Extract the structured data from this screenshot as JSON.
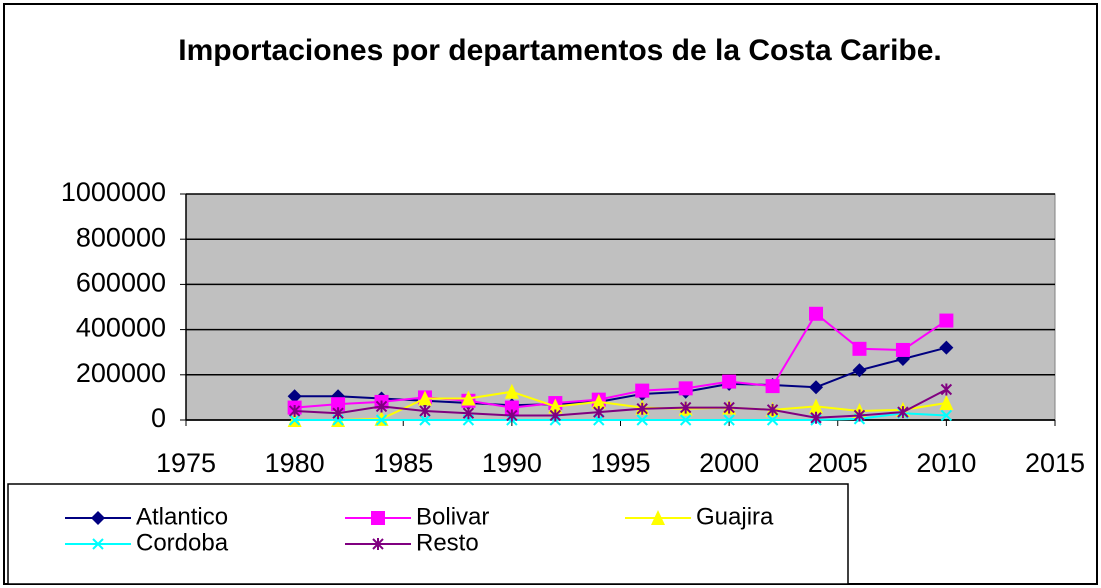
{
  "chart_data": {
    "type": "line",
    "title": "Importaciones por departamentos de la Costa Caribe.",
    "x": [
      1980,
      1982,
      1984,
      1986,
      1988,
      1990,
      1992,
      1994,
      1996,
      1998,
      2000,
      2002,
      2004,
      2006,
      2008,
      2010
    ],
    "xlim": [
      1975,
      2015
    ],
    "xticks": [
      1975,
      1980,
      1985,
      1990,
      1995,
      2000,
      2005,
      2010,
      2015
    ],
    "ylim": [
      0,
      1000000
    ],
    "yticks": [
      0,
      200000,
      400000,
      600000,
      800000,
      1000000
    ],
    "grid": true,
    "series": [
      {
        "name": "Atlantico",
        "color": "#000080",
        "marker": "diamond",
        "values": [
          105000,
          105000,
          95000,
          85000,
          75000,
          65000,
          70000,
          80000,
          115000,
          125000,
          160000,
          155000,
          145000,
          220000,
          270000,
          320000
        ]
      },
      {
        "name": "Bolivar",
        "color": "#ff00ff",
        "marker": "square",
        "values": [
          55000,
          70000,
          80000,
          100000,
          85000,
          55000,
          75000,
          90000,
          130000,
          140000,
          170000,
          150000,
          470000,
          315000,
          310000,
          440000
        ]
      },
      {
        "name": "Guajira",
        "color": "#ffff00",
        "marker": "triangle",
        "values": [
          0,
          0,
          5000,
          95000,
          95000,
          125000,
          60000,
          80000,
          55000,
          50000,
          55000,
          45000,
          60000,
          40000,
          45000,
          75000
        ]
      },
      {
        "name": "Cordoba",
        "color": "#00ffff",
        "marker": "x",
        "values": [
          0,
          0,
          0,
          0,
          0,
          0,
          0,
          0,
          0,
          0,
          0,
          0,
          0,
          5000,
          30000,
          20000
        ]
      },
      {
        "name": "Resto",
        "color": "#800080",
        "marker": "star",
        "values": [
          40000,
          30000,
          60000,
          40000,
          30000,
          20000,
          20000,
          35000,
          50000,
          55000,
          55000,
          45000,
          10000,
          20000,
          35000,
          135000
        ]
      }
    ]
  }
}
